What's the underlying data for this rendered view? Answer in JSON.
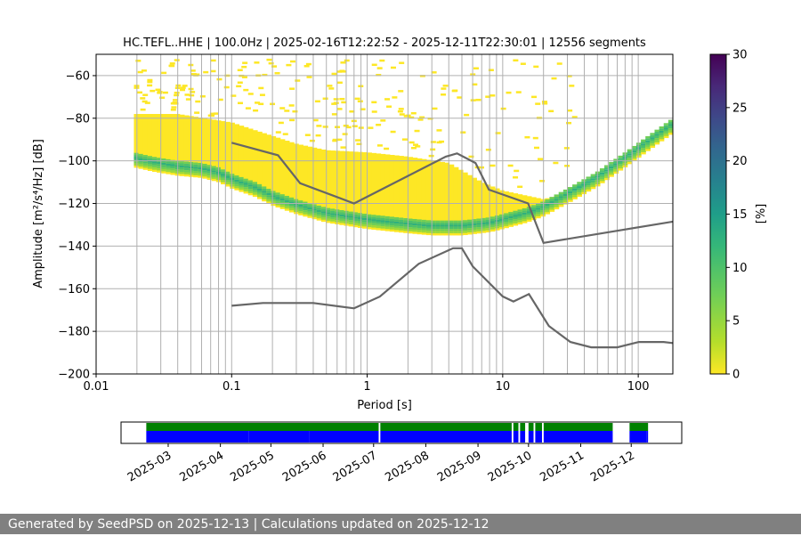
{
  "chart_data": [
    {
      "type": "heatmap",
      "title": "HC.TEFL..HHE | 100.0Hz | 2025-02-16T12:22:52 - 2025-12-11T22:30:01 | 12556 segments",
      "xlabel": "Period [s]",
      "ylabel": "Amplitude [m²/s⁴/Hz] [dB]",
      "x_scale": "log",
      "xlim": [
        0.01,
        180
      ],
      "ylim": [
        -200,
        -50
      ],
      "xticks": [
        {
          "value": 0.01,
          "label": "0.01"
        },
        {
          "value": 0.1,
          "label": "0.1"
        },
        {
          "value": 1,
          "label": "1"
        },
        {
          "value": 10,
          "label": "10"
        },
        {
          "value": 100,
          "label": "100"
        }
      ],
      "yticks": [
        -200,
        -180,
        -160,
        -140,
        -120,
        -100,
        -80,
        -60
      ],
      "grid": true,
      "colormap": "viridis_r",
      "colorbar": {
        "label": "[%]",
        "min": 0,
        "max": 30,
        "ticks": [
          0,
          5,
          10,
          15,
          20,
          25,
          30
        ]
      },
      "series": [
        {
          "role": "noise-model-high",
          "points": [
            [
              0.1,
              -91.5
            ],
            [
              0.22,
              -97.4
            ],
            [
              0.32,
              -110.5
            ],
            [
              0.8,
              -120
            ],
            [
              3.8,
              -98
            ],
            [
              4.6,
              -96.5
            ],
            [
              6.3,
              -101
            ],
            [
              7.9,
              -113.5
            ],
            [
              15.4,
              -120
            ],
            [
              20,
              -138.5
            ],
            [
              180,
              -128.5
            ]
          ]
        },
        {
          "role": "noise-model-low",
          "points": [
            [
              0.1,
              -168
            ],
            [
              0.17,
              -166.7
            ],
            [
              0.4,
              -166.7
            ],
            [
              0.8,
              -169.2
            ],
            [
              1.24,
              -163.7
            ],
            [
              2.4,
              -148.3
            ],
            [
              4.3,
              -141
            ],
            [
              5.0,
              -141
            ],
            [
              6.0,
              -149.5
            ],
            [
              10,
              -163.6
            ],
            [
              12,
              -166
            ],
            [
              15.6,
              -162.5
            ],
            [
              21.9,
              -177.5
            ],
            [
              31.6,
              -185
            ],
            [
              45,
              -187.5
            ],
            [
              70,
              -187.5
            ],
            [
              101,
              -185
            ],
            [
              154,
              -185
            ],
            [
              180,
              -185.5
            ]
          ]
        }
      ],
      "distribution": {
        "mode": [
          [
            0.019,
            -99
          ],
          [
            0.026,
            -101
          ],
          [
            0.04,
            -103
          ],
          [
            0.06,
            -104
          ],
          [
            0.08,
            -106
          ],
          [
            0.1,
            -109
          ],
          [
            0.15,
            -113
          ],
          [
            0.2,
            -117
          ],
          [
            0.3,
            -121
          ],
          [
            0.5,
            -125
          ],
          [
            1.0,
            -128
          ],
          [
            2,
            -130
          ],
          [
            3,
            -131
          ],
          [
            5,
            -131
          ],
          [
            8,
            -129.5
          ],
          [
            10,
            -128
          ],
          [
            15,
            -125
          ],
          [
            20,
            -122
          ],
          [
            30,
            -116
          ],
          [
            50,
            -108
          ],
          [
            80,
            -99
          ],
          [
            120,
            -91
          ],
          [
            180,
            -83
          ]
        ],
        "upper": [
          [
            0.019,
            -78
          ],
          [
            0.04,
            -78
          ],
          [
            0.1,
            -82
          ],
          [
            0.3,
            -92
          ],
          [
            0.5,
            -95
          ],
          [
            1,
            -96
          ],
          [
            2,
            -98
          ],
          [
            4,
            -101
          ],
          [
            7,
            -110
          ],
          [
            10,
            -114
          ],
          [
            20,
            -118
          ],
          [
            40,
            -113
          ],
          [
            80,
            -100
          ],
          [
            180,
            -81
          ]
        ]
      }
    },
    {
      "type": "bar",
      "title": "",
      "xlabel": "",
      "ylabel": "",
      "xlim": [
        "2025-02-01",
        "2025-12-31"
      ],
      "xticks": [
        "2025-03",
        "2025-04",
        "2025-05",
        "2025-06",
        "2025-07",
        "2025-08",
        "2025-09",
        "2025-10",
        "2025-11",
        "2025-12"
      ],
      "series": [
        {
          "name": "",
          "color": "#008000",
          "segments": [
            [
              "2025-02-16",
              "2025-07-04"
            ],
            [
              "2025-07-05",
              "2025-09-21"
            ],
            [
              "2025-09-22",
              "2025-09-25"
            ],
            [
              "2025-09-26",
              "2025-09-29"
            ],
            [
              "2025-10-01",
              "2025-10-04"
            ],
            [
              "2025-10-05",
              "2025-10-09"
            ],
            [
              "2025-10-10",
              "2025-11-20"
            ],
            [
              "2025-11-30",
              "2025-12-11"
            ]
          ]
        },
        {
          "name": "",
          "color": "#0000ff",
          "segments": [
            [
              "2025-02-16",
              "2025-04-18"
            ],
            [
              "2025-04-18",
              "2025-05-24"
            ],
            [
              "2025-05-24",
              "2025-07-04"
            ],
            [
              "2025-07-05",
              "2025-09-21"
            ],
            [
              "2025-09-22",
              "2025-09-25"
            ],
            [
              "2025-09-26",
              "2025-09-29"
            ],
            [
              "2025-10-01",
              "2025-10-04"
            ],
            [
              "2025-10-05",
              "2025-10-09"
            ],
            [
              "2025-10-10",
              "2025-11-20"
            ],
            [
              "2025-11-30",
              "2025-12-10"
            ],
            [
              "2025-12-10",
              "2025-12-11"
            ]
          ]
        }
      ]
    }
  ],
  "footer": {
    "text": "Generated by SeedPSD on 2025-12-13 | Calculations updated on 2025-12-12"
  }
}
